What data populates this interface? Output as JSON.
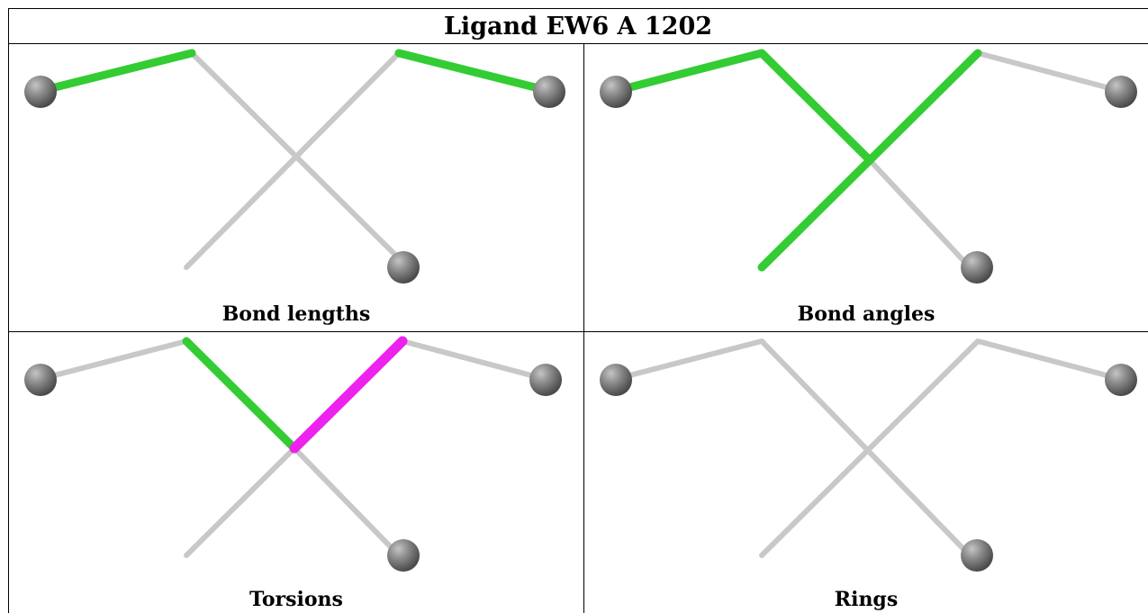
{
  "title": "Ligand EW6 A 1202",
  "panels": [
    {
      "id": "bond-lengths",
      "caption": "Bond lengths"
    },
    {
      "id": "bond-angles",
      "caption": "Bond angles"
    },
    {
      "id": "torsions",
      "caption": "Torsions"
    },
    {
      "id": "rings",
      "caption": "Rings"
    }
  ],
  "colors": {
    "bond_default": "#c8c8c8",
    "atom": "#808080",
    "highlight_green": "#33cc33",
    "highlight_magenta": "#ee22ee"
  }
}
